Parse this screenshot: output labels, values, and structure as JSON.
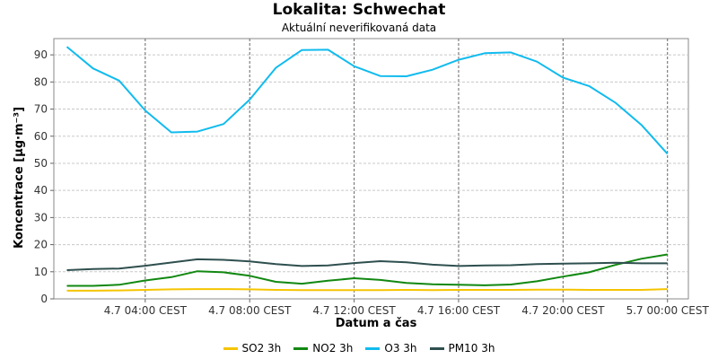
{
  "title": "Lokalita: Schwechat",
  "subtitle": "Aktuální neverifikovaná data",
  "chart_data": {
    "type": "line",
    "xlabel": "Datum a čas",
    "ylabel": "Koncentrace [μg·m⁻³]",
    "ylim": [
      0,
      96
    ],
    "yticks": [
      0,
      10,
      20,
      30,
      40,
      50,
      60,
      70,
      80,
      90
    ],
    "grid": true,
    "legend_position": "bottom",
    "x_tick_labels": [
      "4.7 04:00 CEST",
      "4.7 08:00 CEST",
      "4.7 12:00 CEST",
      "4.7 16:00 CEST",
      "4.7 20:00 CEST",
      "5.7 00:00 CEST"
    ],
    "x_tick_hours": [
      4,
      8,
      12,
      16,
      20,
      24
    ],
    "x_range_hours": [
      0.5,
      24.8
    ],
    "x_hours": [
      1,
      2,
      3,
      4,
      5,
      6,
      7,
      8,
      9,
      10,
      11,
      12,
      13,
      14,
      15,
      16,
      17,
      18,
      19,
      20,
      21,
      22,
      23,
      24
    ],
    "series": [
      {
        "name": "SO2 3h",
        "color": "#f5c400",
        "values": [
          3.0,
          3.0,
          3.1,
          3.3,
          3.5,
          3.6,
          3.6,
          3.5,
          3.3,
          3.2,
          3.2,
          3.2,
          3.2,
          3.3,
          3.2,
          3.3,
          3.3,
          3.3,
          3.4,
          3.4,
          3.3,
          3.3,
          3.3,
          3.6
        ]
      },
      {
        "name": "NO2 3h",
        "color": "#118811",
        "values": [
          4.8,
          4.8,
          5.2,
          6.8,
          8.0,
          10.2,
          9.8,
          8.5,
          6.3,
          5.6,
          6.7,
          7.6,
          7.0,
          5.9,
          5.4,
          5.2,
          5.0,
          5.3,
          6.5,
          8.2,
          9.8,
          12.5,
          14.8,
          16.4
        ]
      },
      {
        "name": "O3 3h",
        "color": "#11bbee",
        "values": [
          93.0,
          85.0,
          80.5,
          69.5,
          61.4,
          61.7,
          64.5,
          73.5,
          85.2,
          91.8,
          91.9,
          85.8,
          82.2,
          82.1,
          84.5,
          88.2,
          90.6,
          90.9,
          87.5,
          81.6,
          78.5,
          72.4,
          64.2,
          53.5
        ]
      },
      {
        "name": "PM10 3h",
        "color": "#2f4f4f",
        "values": [
          10.6,
          11.0,
          11.2,
          12.2,
          13.4,
          14.6,
          14.4,
          13.8,
          12.8,
          12.1,
          12.3,
          13.2,
          13.9,
          13.5,
          12.6,
          12.1,
          12.3,
          12.4,
          12.8,
          13.0,
          13.1,
          13.3,
          13.1,
          13.1
        ]
      }
    ]
  }
}
